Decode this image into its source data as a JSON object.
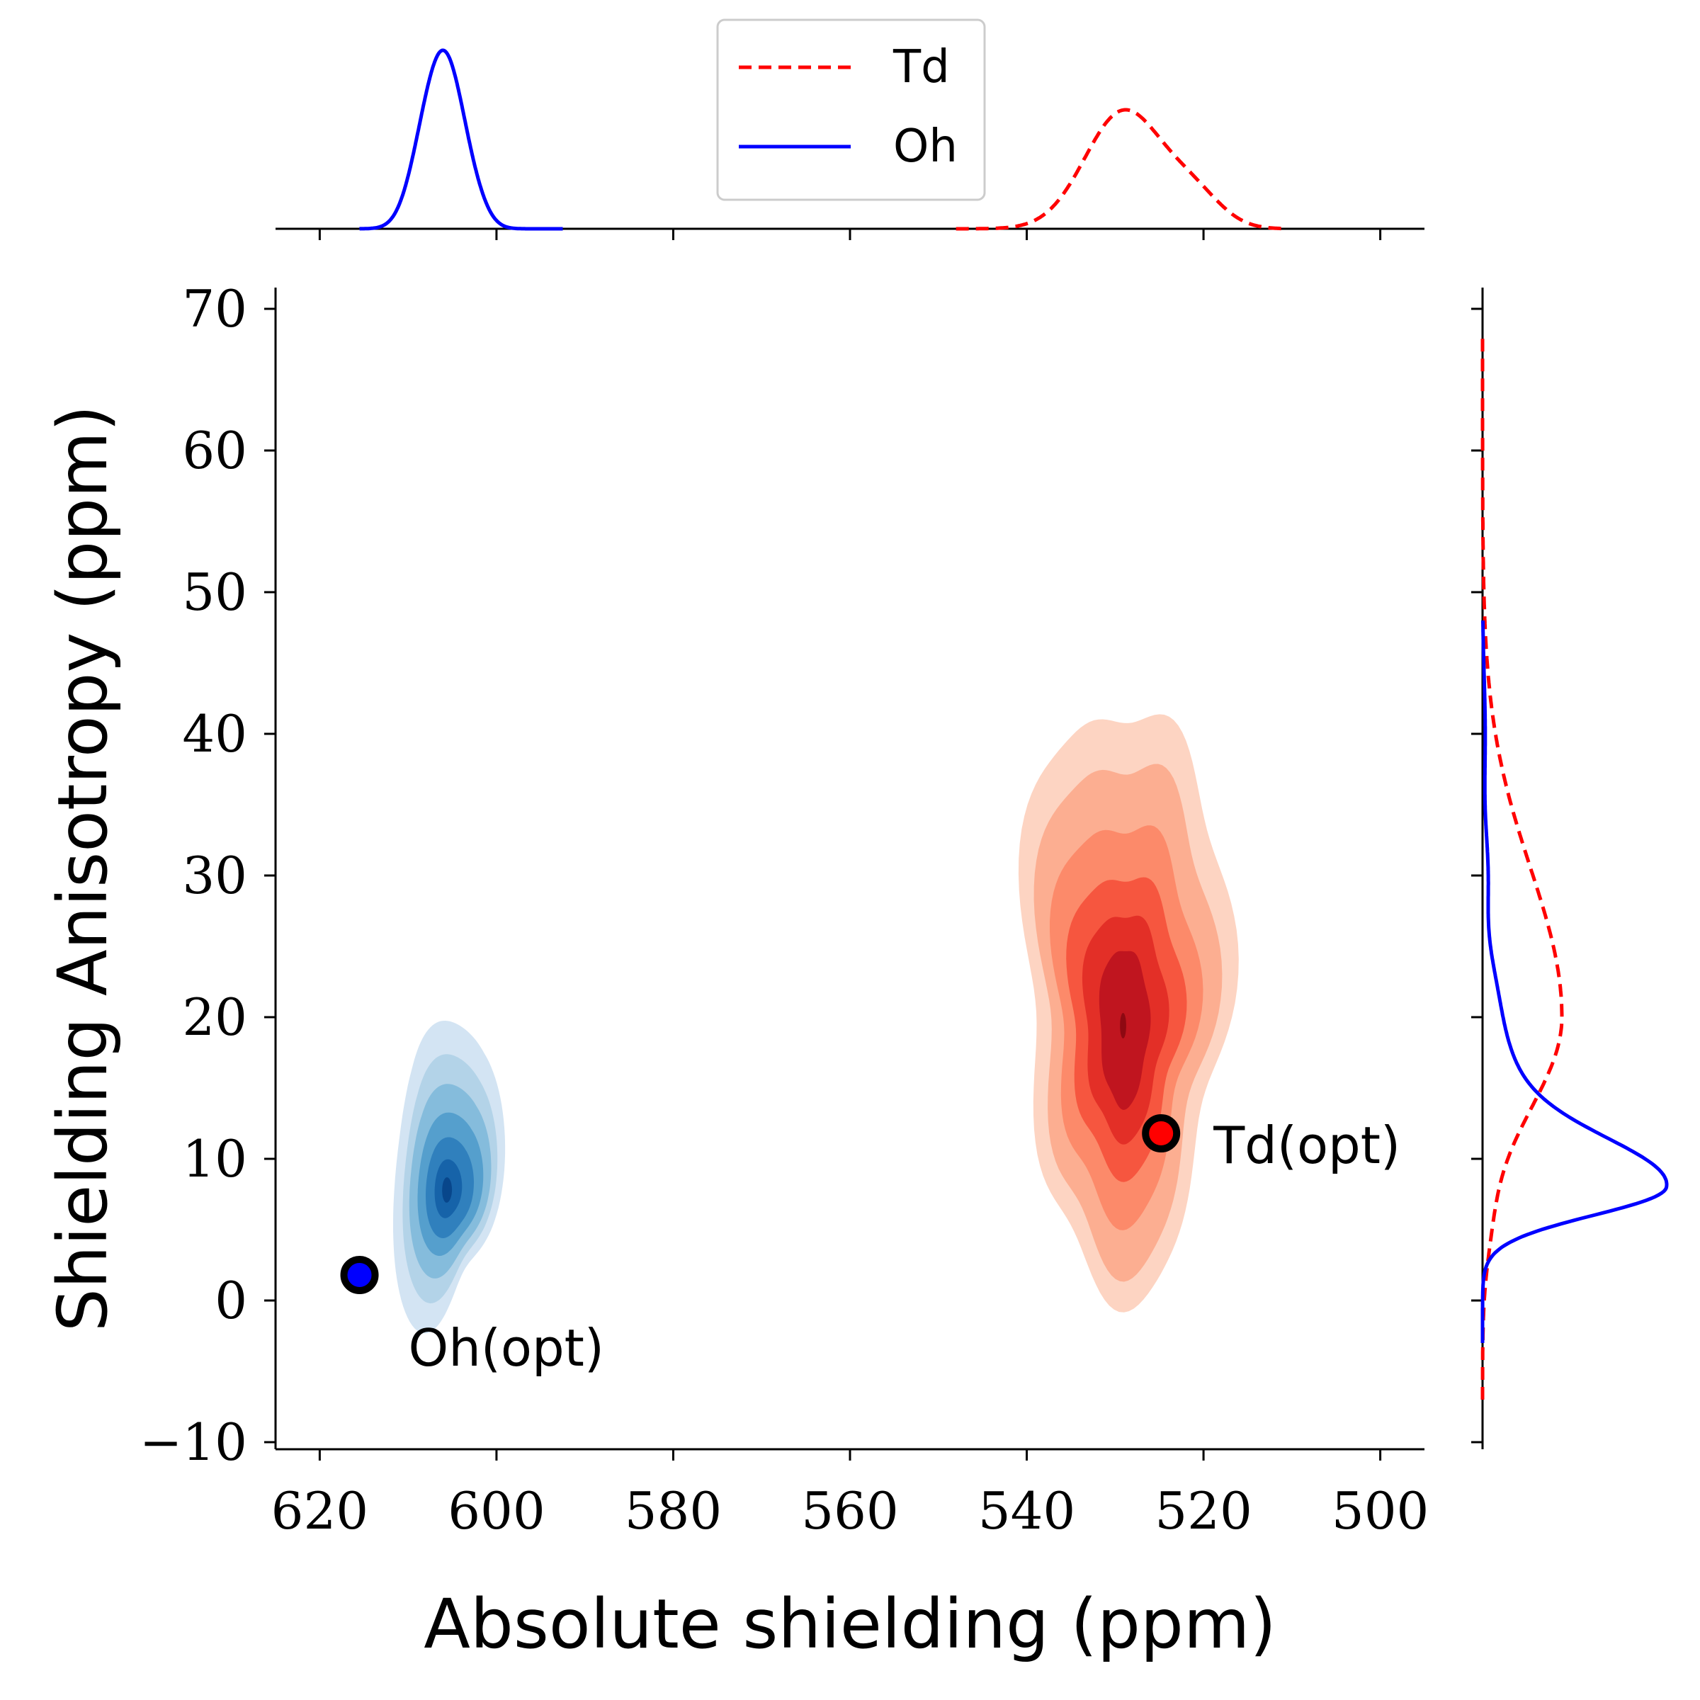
{
  "chart_data": {
    "type": "jointplot-kde",
    "xlabel": "Absolute shielding (ppm)",
    "ylabel": "Shielding Anisotropy (ppm)",
    "xlim": [
      625,
      495
    ],
    "ylim": [
      -10.5,
      71.5
    ],
    "x_ticks": [
      620,
      600,
      580,
      560,
      540,
      520,
      500
    ],
    "y_ticks": [
      -10,
      0,
      10,
      20,
      30,
      40,
      50,
      60,
      70
    ],
    "x_tick_labels": [
      "620",
      "600",
      "580",
      "560",
      "540",
      "520",
      "500"
    ],
    "y_tick_labels": [
      "−10",
      "0",
      "10",
      "20",
      "30",
      "40",
      "50",
      "60",
      "70"
    ],
    "legend": {
      "position": "top-center",
      "entries": [
        {
          "label": "Td",
          "color": "#ff0000",
          "style": "dashed"
        },
        {
          "label": "Oh",
          "color": "#0000ff",
          "style": "solid"
        }
      ]
    },
    "series": [
      {
        "name": "Oh",
        "color": "#0000ff",
        "colormap": "Blues",
        "kde_center": [
          605.5,
          8.0
        ],
        "kde_x_range": [
          610,
          599
        ],
        "kde_y_range": [
          2.5,
          22.5
        ],
        "marginal_x_peak": 605.5,
        "marginal_y_peak": 8
      },
      {
        "name": "Td",
        "color": "#ff0000",
        "colormap": "Reds",
        "kde_center": [
          529.0,
          19.5
        ],
        "kde_x_range": [
          539,
          520
        ],
        "kde_y_range": [
          3,
          42.5
        ],
        "marginal_x_peak": 529.0,
        "marginal_y_peak": 20
      }
    ],
    "reference_points": [
      {
        "label": "Oh(opt)",
        "x": 615.5,
        "y": 1.8,
        "color": "#0000ff"
      },
      {
        "label": "Td(opt)",
        "x": 524.8,
        "y": 11.8,
        "color": "#ff0000"
      }
    ]
  },
  "colors": {
    "blues": [
      "#d3e4f3",
      "#b3d3e8",
      "#85bcdc",
      "#559fcd",
      "#3080bd",
      "#1663a9",
      "#08468b"
    ],
    "reds": [
      "#fdd4c2",
      "#fcae91",
      "#fc8a6a",
      "#f6563f",
      "#e32f27",
      "#c0151f",
      "#8e0912"
    ]
  }
}
